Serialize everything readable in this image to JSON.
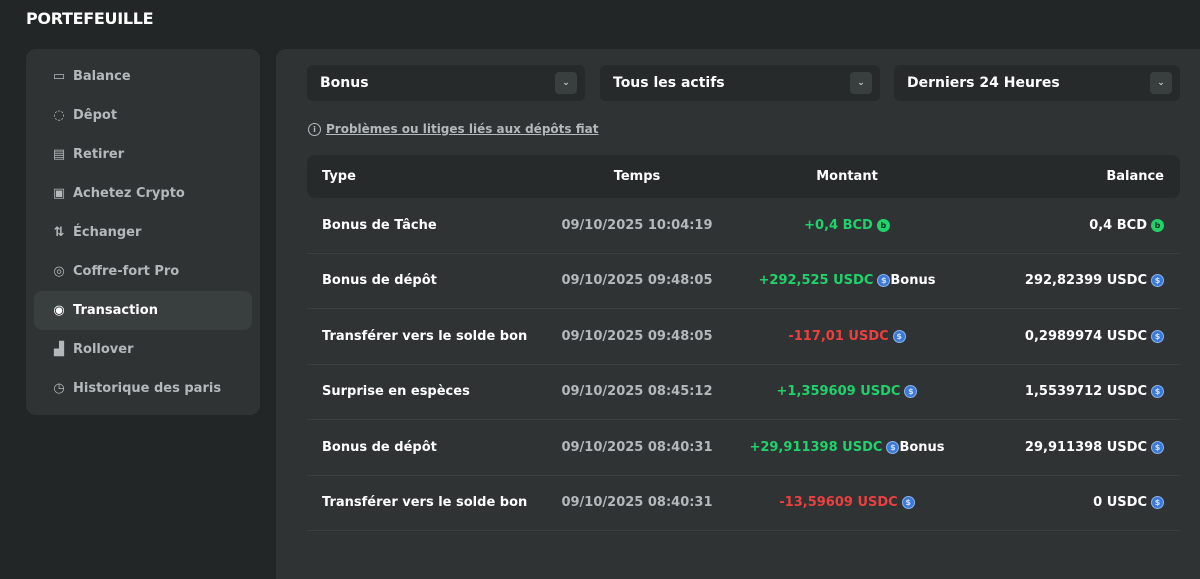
{
  "header": {
    "title": "PORTEFEUILLE"
  },
  "sidebar": {
    "items": [
      {
        "label": "Balance",
        "icon": "wallet-icon"
      },
      {
        "label": "Dêpot",
        "icon": "piggy-bank-icon"
      },
      {
        "label": "Retirer",
        "icon": "withdraw-icon"
      },
      {
        "label": "Achetez Crypto",
        "icon": "cash-icon"
      },
      {
        "label": "Échanger",
        "icon": "swap-icon"
      },
      {
        "label": "Coffre-fort Pro",
        "icon": "vault-icon"
      },
      {
        "label": "Transaction",
        "icon": "transaction-icon",
        "active": true
      },
      {
        "label": "Rollover",
        "icon": "chart-bars-icon"
      },
      {
        "label": "Historique des paris",
        "icon": "clock-icon"
      }
    ]
  },
  "filters": {
    "type": "Bonus",
    "asset": "Tous les actifs",
    "period": "Derniers 24 Heures"
  },
  "info_link": "Problèmes ou litiges liés aux dépôts fiat",
  "table": {
    "headers": {
      "type": "Type",
      "time": "Temps",
      "amount": "Montant",
      "balance": "Balance"
    },
    "rows": [
      {
        "type": "Bonus de Tâche",
        "time": "09/10/2025 10:04:19",
        "amount": "+0,4 BCD",
        "coin": "bcd",
        "suffix": "",
        "balance": "0,4 BCD",
        "sign": "pos"
      },
      {
        "type": "Bonus de dépôt",
        "time": "09/10/2025 09:48:05",
        "amount": "+292,525 USDC",
        "coin": "usdc",
        "suffix": "Bonus",
        "balance": "292,82399 USDC",
        "sign": "pos"
      },
      {
        "type": "Transférer vers le solde bonus",
        "time": "09/10/2025 09:48:05",
        "amount": "-117,01 USDC",
        "coin": "usdc",
        "suffix": "",
        "balance": "0,2989974 USDC",
        "sign": "neg"
      },
      {
        "type": "Surprise en espèces",
        "time": "09/10/2025 08:45:12",
        "amount": "+1,359609 USDC",
        "coin": "usdc",
        "suffix": "",
        "balance": "1,5539712 USDC",
        "sign": "pos"
      },
      {
        "type": "Bonus de dépôt",
        "time": "09/10/2025 08:40:31",
        "amount": "+29,911398 USDC",
        "coin": "usdc",
        "suffix": "Bonus",
        "balance": "29,911398 USDC",
        "sign": "pos"
      },
      {
        "type": "Transférer vers le solde bonus",
        "time": "09/10/2025 08:40:31",
        "amount": "-13,59609 USDC",
        "coin": "usdc",
        "suffix": "",
        "balance": "0 USDC",
        "sign": "neg"
      }
    ]
  },
  "colors": {
    "positive": "#1fd36c",
    "negative": "#ed3f3f",
    "usdc": "#3a79d6",
    "bcd": "#1fd36c"
  }
}
